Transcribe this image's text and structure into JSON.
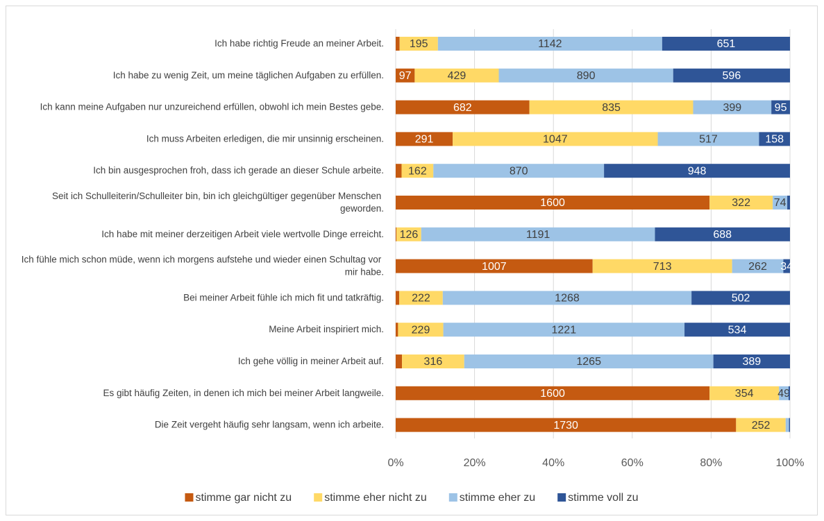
{
  "chart_data": {
    "type": "bar",
    "orientation": "horizontal",
    "stacked": "percent",
    "categories": [
      "Ich habe richtig Freude an meiner Arbeit.",
      "Ich habe zu wenig Zeit, um meine täglichen Aufgaben zu erfüllen.",
      "Ich kann meine Aufgaben nur unzureichend erfüllen, obwohl ich mein Bestes gebe.",
      "Ich muss Arbeiten erledigen, die mir unsinnig erscheinen.",
      "Ich bin ausgesprochen froh, dass ich gerade an dieser Schule arbeite.",
      "Seit ich Schulleiterin/Schulleiter bin, bin ich gleichgültiger gegenüber Menschen geworden.",
      "Ich habe mit meiner derzeitigen Arbeit viele wertvolle Dinge erreicht.",
      "Ich fühle mich schon müde, wenn ich morgens aufstehe und wieder einen Schultag vor mir habe.",
      "Bei meiner Arbeit fühle ich mich fit und tatkräftig.",
      "Meine Arbeit inspiriert mich.",
      "Ich gehe völlig in meiner Arbeit auf.",
      "Es gibt häufig Zeiten, in denen ich mich bei meiner Arbeit langweile.",
      "Die Zeit vergeht häufig sehr langsam, wenn ich arbeite."
    ],
    "series": [
      {
        "name": "stimme gar nicht zu",
        "color": "#c55a11",
        "values": [
          20,
          97,
          682,
          291,
          30,
          1600,
          4,
          1007,
          18,
          12,
          32,
          1600,
          1730
        ]
      },
      {
        "name": "stimme eher nicht zu",
        "color": "#ffd966",
        "values": [
          195,
          429,
          835,
          1047,
          162,
          322,
          126,
          713,
          222,
          229,
          316,
          354,
          252
        ]
      },
      {
        "name": "stimme eher zu",
        "color": "#9dc3e6",
        "values": [
          1142,
          890,
          399,
          517,
          870,
          74,
          1191,
          262,
          1268,
          1221,
          1265,
          49,
          17
        ]
      },
      {
        "name": "stimme voll zu",
        "color": "#2f5597",
        "values": [
          651,
          596,
          95,
          158,
          948,
          14,
          688,
          34,
          502,
          534,
          389,
          7,
          5
        ]
      }
    ],
    "xlim": [
      0,
      100
    ],
    "xticks": [
      {
        "value": 0,
        "label": "0%"
      },
      {
        "value": 20,
        "label": "20%"
      },
      {
        "value": 40,
        "label": "40%"
      },
      {
        "value": 60,
        "label": "60%"
      },
      {
        "value": 80,
        "label": "80%"
      },
      {
        "value": 100,
        "label": "100%"
      }
    ],
    "grid": true,
    "legend": "bottom"
  }
}
